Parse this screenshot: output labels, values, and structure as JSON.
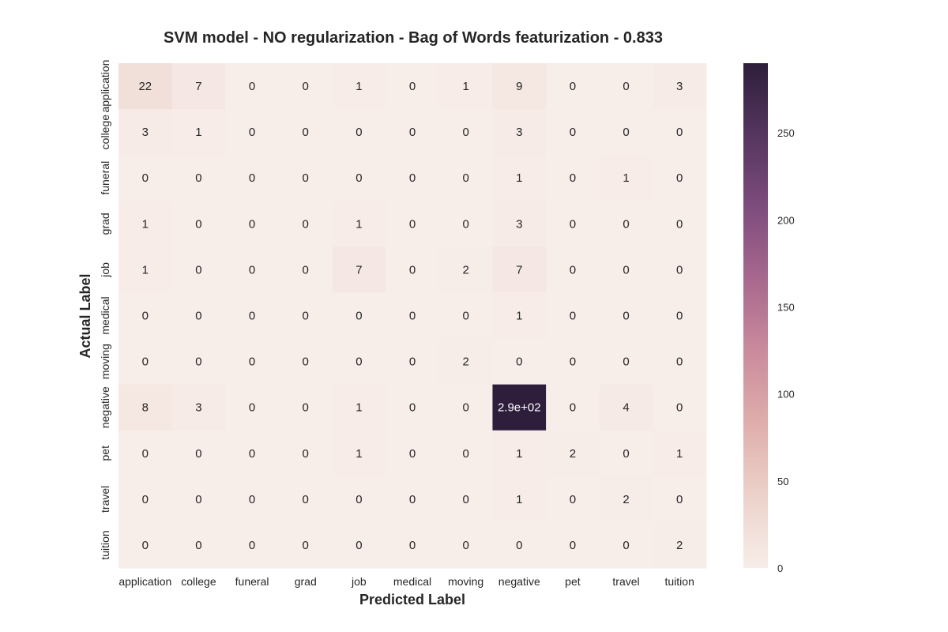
{
  "chart_data": {
    "type": "heatmap",
    "title": "SVM model -  NO regularization - Bag of Words featurization - 0.833",
    "xlabel": "Predicted Label",
    "ylabel": "Actual Label",
    "x_categories": [
      "application",
      "college",
      "funeral",
      "grad",
      "job",
      "medical",
      "moving",
      "negative",
      "pet",
      "travel",
      "tuition"
    ],
    "y_categories": [
      "application",
      "college",
      "funeral",
      "grad",
      "job",
      "medical",
      "moving",
      "negative",
      "pet",
      "travel",
      "tuition"
    ],
    "values": [
      [
        22,
        7,
        0,
        0,
        1,
        0,
        1,
        9,
        0,
        0,
        3
      ],
      [
        3,
        1,
        0,
        0,
        0,
        0,
        0,
        3,
        0,
        0,
        0
      ],
      [
        0,
        0,
        0,
        0,
        0,
        0,
        0,
        1,
        0,
        1,
        0
      ],
      [
        1,
        0,
        0,
        0,
        1,
        0,
        0,
        3,
        0,
        0,
        0
      ],
      [
        1,
        0,
        0,
        0,
        7,
        0,
        2,
        7,
        0,
        0,
        0
      ],
      [
        0,
        0,
        0,
        0,
        0,
        0,
        0,
        1,
        0,
        0,
        0
      ],
      [
        0,
        0,
        0,
        0,
        0,
        0,
        2,
        0,
        0,
        0,
        0
      ],
      [
        8,
        3,
        0,
        0,
        1,
        0,
        0,
        290,
        0,
        4,
        0
      ],
      [
        0,
        0,
        0,
        0,
        1,
        0,
        0,
        1,
        2,
        0,
        1
      ],
      [
        0,
        0,
        0,
        0,
        0,
        0,
        0,
        1,
        0,
        2,
        0
      ],
      [
        0,
        0,
        0,
        0,
        0,
        0,
        0,
        0,
        0,
        0,
        2
      ]
    ],
    "cell_labels": [
      [
        "22",
        "7",
        "0",
        "0",
        "1",
        "0",
        "1",
        "9",
        "0",
        "0",
        "3"
      ],
      [
        "3",
        "1",
        "0",
        "0",
        "0",
        "0",
        "0",
        "3",
        "0",
        "0",
        "0"
      ],
      [
        "0",
        "0",
        "0",
        "0",
        "0",
        "0",
        "0",
        "1",
        "0",
        "1",
        "0"
      ],
      [
        "1",
        "0",
        "0",
        "0",
        "1",
        "0",
        "0",
        "3",
        "0",
        "0",
        "0"
      ],
      [
        "1",
        "0",
        "0",
        "0",
        "7",
        "0",
        "2",
        "7",
        "0",
        "0",
        "0"
      ],
      [
        "0",
        "0",
        "0",
        "0",
        "0",
        "0",
        "0",
        "1",
        "0",
        "0",
        "0"
      ],
      [
        "0",
        "0",
        "0",
        "0",
        "0",
        "0",
        "2",
        "0",
        "0",
        "0",
        "0"
      ],
      [
        "8",
        "3",
        "0",
        "0",
        "1",
        "0",
        "0",
        "2.9e+02",
        "0",
        "4",
        "0"
      ],
      [
        "0",
        "0",
        "0",
        "0",
        "1",
        "0",
        "0",
        "1",
        "2",
        "0",
        "1"
      ],
      [
        "0",
        "0",
        "0",
        "0",
        "0",
        "0",
        "0",
        "1",
        "0",
        "2",
        "0"
      ],
      [
        "0",
        "0",
        "0",
        "0",
        "0",
        "0",
        "0",
        "0",
        "0",
        "0",
        "2"
      ]
    ],
    "colorbar": {
      "min": 0,
      "max": 290,
      "ticks": [
        0,
        50,
        100,
        150,
        200,
        250
      ],
      "tick_labels": [
        "0",
        "50",
        "100",
        "150",
        "200",
        "250"
      ]
    },
    "colormap": [
      "#f7ede9",
      "#ecd2ca",
      "#dfaeab",
      "#ca8b9d",
      "#a8688e",
      "#7e4c7e",
      "#55365f",
      "#2e1e3b"
    ],
    "grid": false
  }
}
